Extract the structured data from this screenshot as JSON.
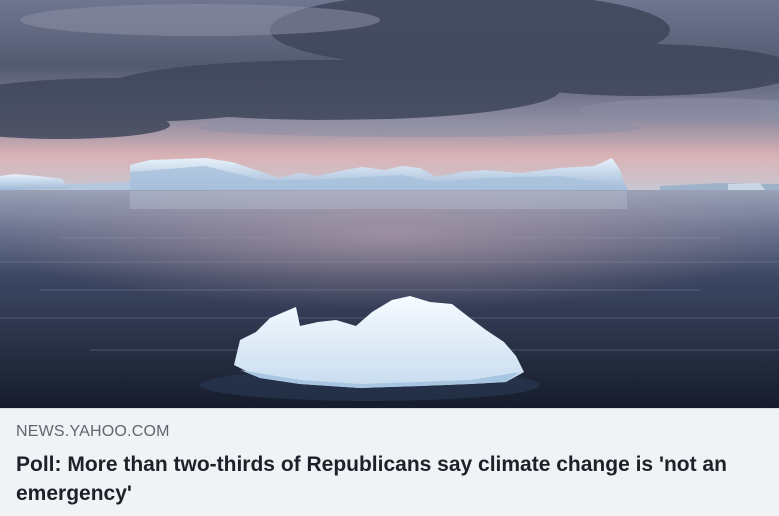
{
  "link_preview": {
    "domain": "NEWS.YAHOO.COM",
    "headline": "Poll: More than two-thirds of Republicans say climate change is 'not an emergency'",
    "image": {
      "subject": "icebergs-at-dusk",
      "colors": {
        "sky_top": "#5b6277",
        "sky_glow": "#e6b8b6",
        "water_dark": "#1c2638",
        "ice": "#e9f1f8"
      }
    }
  }
}
